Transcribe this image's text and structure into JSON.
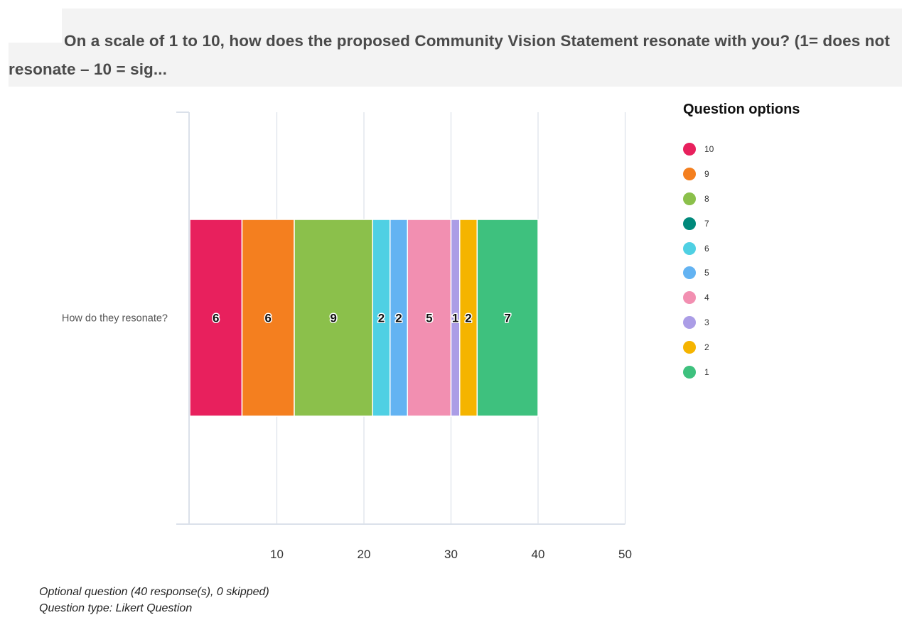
{
  "question": {
    "text": "On a scale of 1 to 10, how does the proposed Community Vision Statement resonate with you? (1= does not resonate – 10 = sig..."
  },
  "chart_data": {
    "type": "bar",
    "orientation": "horizontal",
    "stacked": true,
    "categories": [
      "How do they resonate?"
    ],
    "series": [
      {
        "name": "10",
        "values": [
          6
        ],
        "color": "#e8205d"
      },
      {
        "name": "9",
        "values": [
          6
        ],
        "color": "#f47f1f"
      },
      {
        "name": "8",
        "values": [
          9
        ],
        "color": "#8bc04b"
      },
      {
        "name": "7",
        "values": [
          0
        ],
        "color": "#00897b"
      },
      {
        "name": "6",
        "values": [
          2
        ],
        "color": "#4fd0e3"
      },
      {
        "name": "5",
        "values": [
          2
        ],
        "color": "#63b3f2"
      },
      {
        "name": "4",
        "values": [
          5
        ],
        "color": "#f28fb1"
      },
      {
        "name": "3",
        "values": [
          1
        ],
        "color": "#ab9de6"
      },
      {
        "name": "2",
        "values": [
          2
        ],
        "color": "#f5b400"
      },
      {
        "name": "1",
        "values": [
          7
        ],
        "color": "#3ec17e"
      }
    ],
    "xlim": [
      0,
      50
    ],
    "xticks": [
      10,
      20,
      30,
      40,
      50
    ],
    "grid": true,
    "data_labels": true,
    "legend": {
      "title": "Question options",
      "placement": "right"
    }
  },
  "footer": {
    "line1": "Optional question (40 response(s), 0 skipped)",
    "line2": "Question type: Likert Question"
  },
  "colors": {
    "header_background": "#f3f3f3",
    "grid": "#dbe1ea",
    "label_text": "#111111"
  }
}
